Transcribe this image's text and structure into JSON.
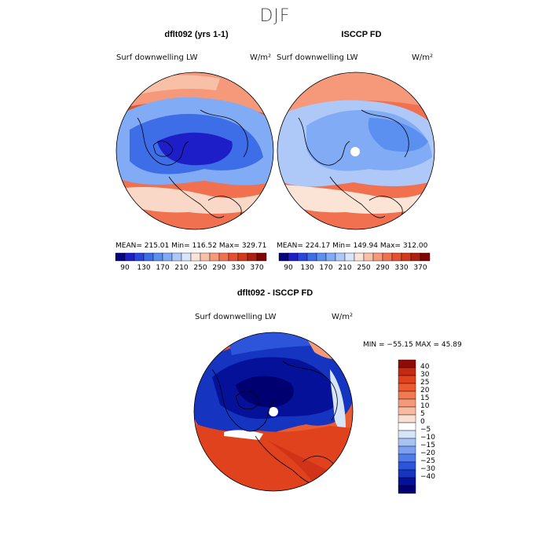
{
  "season": "DJF",
  "panels": [
    {
      "title": "dflt092 (yrs 1-1)",
      "field": "Surf downwelling LW",
      "units": "W/m²",
      "stats": "MEAN= 215.01   Min= 116.52   Max= 329.71"
    },
    {
      "title": "ISCCP FD",
      "field": "Surf downwelling LW",
      "units": "W/m²",
      "stats": "MEAN= 224.17   Min= 149.94   Max= 312.00"
    }
  ],
  "colorbar": {
    "ticks": [
      "90",
      "130",
      "170",
      "210",
      "250",
      "290",
      "330",
      "370"
    ],
    "colors": [
      "#050582",
      "#1e1ec8",
      "#2a44e0",
      "#3d6ee8",
      "#5b8ff0",
      "#82abf5",
      "#aec8f8",
      "#d8e6fb",
      "#fbe3d5",
      "#f8c0a6",
      "#f5997a",
      "#f07050",
      "#e5502f",
      "#d23a1e",
      "#b0200e",
      "#7d0707"
    ]
  },
  "diff": {
    "title": "dflt092 - ISCCP FD",
    "field": "Surf downwelling LW",
    "units": "W/m²",
    "minmax": "MIN = −55.15 MAX =  45.89",
    "legend_labels": [
      "40",
      "30",
      "25",
      "20",
      "15",
      "10",
      "5",
      "0",
      "−5",
      "−10",
      "−15",
      "−20",
      "−25",
      "−30",
      "−40"
    ],
    "legend_colors": [
      "#8e0c08",
      "#c42a12",
      "#e0421e",
      "#ec5a30",
      "#f27a50",
      "#f59a78",
      "#f7bba2",
      "#fbe0d2",
      "#ffffff",
      "#d6e4fa",
      "#a8c2f4",
      "#7c9ff0",
      "#507ce8",
      "#2c55dc",
      "#1535c0",
      "#06119a",
      "#000070"
    ]
  }
}
